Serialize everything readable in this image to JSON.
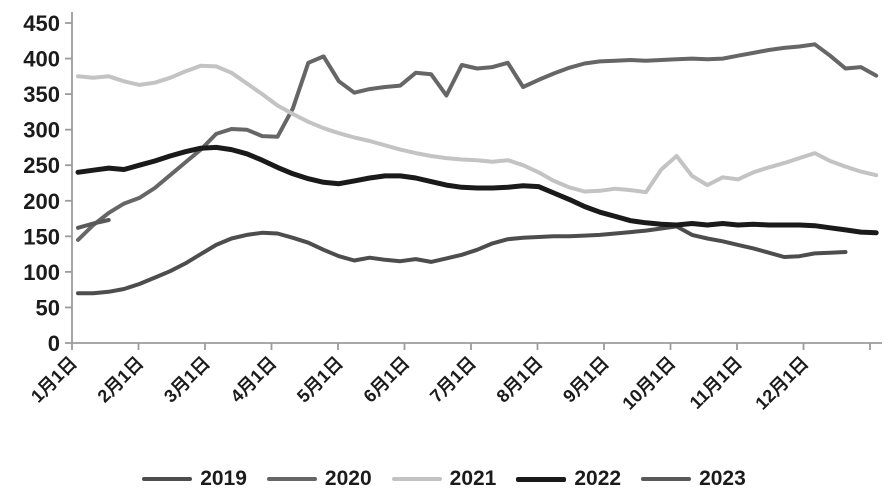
{
  "chart_data": {
    "type": "line",
    "title": "",
    "grid": false,
    "background": "#ffffff",
    "x_axis": {
      "unit": "weekly points across one year",
      "label_rotation_deg": 45,
      "tick_labels": [
        "1月1日",
        "2月1日",
        "3月1日",
        "4月1日",
        "5月1日",
        "6月1日",
        "7月1日",
        "8月1日",
        "9月1日",
        "10月1日",
        "11月1日",
        "12月1日"
      ]
    },
    "y_axis": {
      "min": 0,
      "max": 450,
      "step": 50,
      "tick_labels": [
        "0",
        "50",
        "100",
        "150",
        "200",
        "250",
        "300",
        "350",
        "400",
        "450"
      ]
    },
    "legend_position": "bottom",
    "series": [
      {
        "name": "2019",
        "color": "#4d4d4d",
        "line_width": 4,
        "values": [
          70,
          70,
          72,
          76,
          83,
          92,
          101,
          112,
          125,
          138,
          147,
          152,
          155,
          154,
          148,
          141,
          131,
          122,
          116,
          120,
          117,
          115,
          118,
          114,
          119,
          124,
          131,
          140,
          146,
          148,
          149,
          150,
          150,
          151,
          152,
          154,
          156,
          158,
          161,
          164,
          152,
          147,
          143,
          138,
          133,
          127,
          121,
          122,
          126,
          127,
          128
        ]
      },
      {
        "name": "2020",
        "color": "#666666",
        "line_width": 4,
        "values": [
          145,
          166,
          183,
          196,
          204,
          218,
          236,
          254,
          272,
          294,
          301,
          300,
          291,
          290,
          330,
          394,
          403,
          368,
          352,
          357,
          360,
          362,
          380,
          378,
          348,
          391,
          386,
          388,
          394,
          360,
          370,
          379,
          387,
          393,
          396,
          397,
          398,
          397,
          398,
          399,
          400,
          399,
          400,
          404,
          408,
          412,
          415,
          417,
          420,
          404,
          386,
          388,
          376
        ]
      },
      {
        "name": "2021",
        "color": "#c3c3c3",
        "line_width": 4,
        "values": [
          375,
          373,
          375,
          368,
          363,
          366,
          373,
          382,
          390,
          389,
          380,
          365,
          350,
          334,
          322,
          311,
          302,
          295,
          289,
          284,
          278,
          272,
          267,
          263,
          260,
          258,
          257,
          255,
          257,
          250,
          240,
          228,
          219,
          213,
          214,
          217,
          215,
          212,
          244,
          263,
          235,
          222,
          233,
          230,
          240,
          247,
          253,
          260,
          267,
          256,
          248,
          241,
          236
        ]
      },
      {
        "name": "2022",
        "color": "#1a1a1a",
        "line_width": 5,
        "values": [
          240,
          243,
          246,
          244,
          250,
          256,
          263,
          269,
          274,
          275,
          272,
          266,
          257,
          247,
          238,
          231,
          226,
          224,
          228,
          232,
          235,
          235,
          232,
          227,
          222,
          219,
          218,
          218,
          219,
          221,
          220,
          211,
          202,
          192,
          184,
          178,
          172,
          169,
          167,
          166,
          168,
          166,
          168,
          166,
          167,
          166,
          166,
          166,
          165,
          162,
          159,
          156,
          155
        ]
      },
      {
        "name": "2023",
        "color": "#595959",
        "line_width": 4,
        "values": [
          162,
          168,
          173
        ]
      }
    ]
  },
  "colors": {
    "axis": "#9c9c9c",
    "tick_label": "#1b1b1b"
  }
}
